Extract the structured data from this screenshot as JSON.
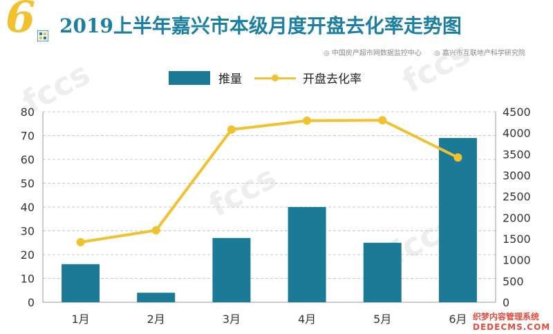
{
  "header": {
    "number": "6",
    "title": "2019上半年嘉兴市本级月度开盘去化率走势图",
    "source_1": "◎ 中国房产超市网数据监控中心",
    "source_2": "◎ 嘉兴市互联地产科学研究院"
  },
  "watermark": "fccs",
  "brand": {
    "line1": "织梦内容管理系统",
    "line2": "DEDECMS.COM"
  },
  "colors": {
    "bar": "#1b7b97",
    "line": "#f2c12e",
    "title": "#1a7fa2"
  },
  "chart_data": {
    "type": "bar",
    "categories": [
      "1月",
      "2月",
      "3月",
      "4月",
      "5月",
      "6月"
    ],
    "series": [
      {
        "name": "推量",
        "type": "bar",
        "axis": "left",
        "values": [
          16,
          4,
          27,
          40,
          25,
          69
        ]
      },
      {
        "name": "开盘去化率",
        "type": "line",
        "axis": "right",
        "values": [
          1420,
          1700,
          4080,
          4290,
          4300,
          3420
        ]
      }
    ],
    "y_left": {
      "min": 0,
      "max": 80,
      "ticks": [
        0,
        10,
        20,
        30,
        40,
        50,
        60,
        70,
        80
      ]
    },
    "y_right": {
      "min": 0,
      "max": 4500,
      "ticks": [
        0,
        500,
        1000,
        1500,
        2000,
        2500,
        3000,
        3500,
        4000,
        4500
      ]
    },
    "grid": true,
    "legend_position": "top"
  }
}
